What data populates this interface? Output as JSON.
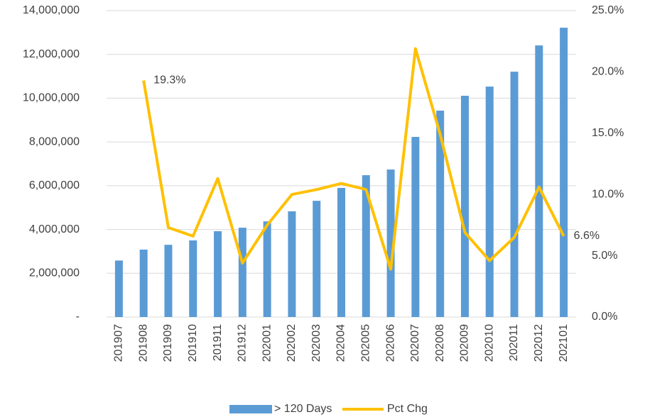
{
  "chart_data": {
    "type": "bar",
    "categories": [
      "201907",
      "201908",
      "201909",
      "201910",
      "201911",
      "201912",
      "202001",
      "202002",
      "202003",
      "202004",
      "202005",
      "202006",
      "202007",
      "202008",
      "202009",
      "202010",
      "202011",
      "202012",
      "202101"
    ],
    "series": [
      {
        "name": "> 120 Days",
        "type": "bar",
        "color": "#5b9bd5",
        "values": [
          2580000,
          3080000,
          3300000,
          3500000,
          3920000,
          4080000,
          4370000,
          4830000,
          5310000,
          5900000,
          6480000,
          6740000,
          8230000,
          9430000,
          10110000,
          10530000,
          11210000,
          12410000,
          13220000
        ]
      },
      {
        "name": "Pct Chg",
        "type": "line",
        "axis": "y2",
        "color": "#ffc000",
        "values": [
          null,
          19.3,
          7.3,
          6.6,
          11.3,
          4.4,
          7.5,
          10.0,
          10.4,
          10.9,
          10.4,
          3.9,
          21.9,
          14.9,
          6.9,
          4.6,
          6.5,
          10.6,
          6.6
        ],
        "value_labels": [
          null,
          "19.3%",
          null,
          null,
          null,
          null,
          null,
          null,
          null,
          null,
          null,
          null,
          null,
          null,
          null,
          null,
          null,
          null,
          "6.6%"
        ]
      }
    ],
    "ylim": [
      0,
      14000000
    ],
    "yticks": [
      {
        "value": 0,
        "label": "-"
      },
      {
        "value": 2000000,
        "label": "2,000,000"
      },
      {
        "value": 4000000,
        "label": "4,000,000"
      },
      {
        "value": 6000000,
        "label": "6,000,000"
      },
      {
        "value": 8000000,
        "label": "8,000,000"
      },
      {
        "value": 10000000,
        "label": "10,000,000"
      },
      {
        "value": 12000000,
        "label": "12,000,000"
      },
      {
        "value": 14000000,
        "label": "14,000,000"
      }
    ],
    "y2lim": [
      0,
      25
    ],
    "y2ticks": [
      {
        "value": 0,
        "label": "0.0%"
      },
      {
        "value": 5,
        "label": "5.0%"
      },
      {
        "value": 10,
        "label": "10.0%"
      },
      {
        "value": 15,
        "label": "15.0%"
      },
      {
        "value": 20,
        "label": "20.0%"
      },
      {
        "value": 25,
        "label": "25.0%"
      }
    ],
    "grid": true,
    "legend": "bottom"
  }
}
